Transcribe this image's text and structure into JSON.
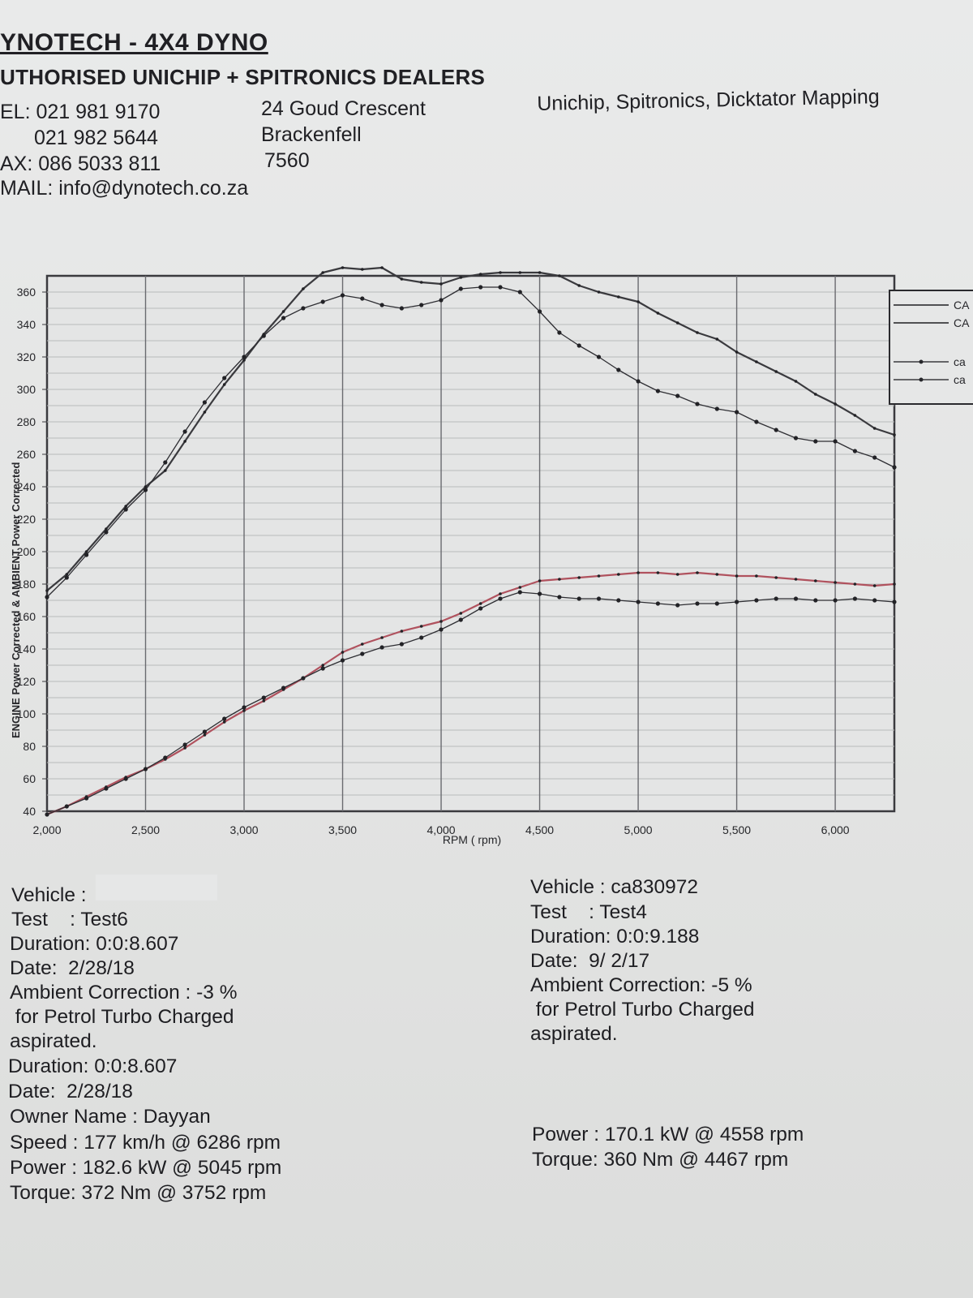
{
  "header": {
    "title": "YNOTECH - 4X4 DYNO",
    "subtitle": "UTHORISED UNICHIP + SPITRONICS DEALERS",
    "tel_line1": "EL: 021 981 9170",
    "tel_line2": "021 982 5644",
    "fax_line": "AX: 086 5033 811",
    "email_line": "MAIL: info@dynotech.co.za",
    "address_line1": "24 Goud Crescent",
    "address_line2": "Brackenfell",
    "address_line3": "7560",
    "services": "Unichip, Spitronics, Dicktator Mapping"
  },
  "chart_data": {
    "type": "line",
    "ylabel": "ENGINE Power Corrected & AMBIENT Power Corrected",
    "xlabel": "RPM ( rpm)",
    "xlim": [
      2000,
      6300
    ],
    "ylim": [
      40,
      370
    ],
    "x_ticks": [
      2000,
      2500,
      3000,
      3500,
      4000,
      4500,
      5000,
      5500,
      6000
    ],
    "x_tick_labels": [
      "2,000",
      "2,500",
      "3,000",
      "3,500",
      "4,000",
      "4,500",
      "5,000",
      "5,500",
      "6,000"
    ],
    "y_ticks": [
      40,
      60,
      80,
      100,
      120,
      140,
      160,
      180,
      200,
      220,
      240,
      260,
      280,
      300,
      320,
      340,
      360
    ],
    "grid": true,
    "legend_position": "right (partially cut off)",
    "legend_labels": [
      "CA",
      "CA",
      "ca",
      "ca"
    ],
    "colors": {
      "current": "#3a3a3e",
      "previous": "#2a2a2e",
      "current_power_tint": "#b0525e"
    },
    "series": [
      {
        "legend_label": "CA",
        "quantity": "torque",
        "markers": false,
        "x": [
          2000,
          2100,
          2200,
          2300,
          2400,
          2500,
          2600,
          2700,
          2800,
          2900,
          3000,
          3100,
          3200,
          3300,
          3400,
          3500,
          3600,
          3700,
          3800,
          3900,
          4000,
          4100,
          4200,
          4300,
          4400,
          4500,
          4600,
          4700,
          4800,
          4900,
          5000,
          5100,
          5200,
          5300,
          5400,
          5500,
          5600,
          5700,
          5800,
          5900,
          6000,
          6100,
          6200,
          6300
        ],
        "values": [
          176,
          186,
          200,
          214,
          228,
          240,
          250,
          268,
          286,
          303,
          318,
          334,
          348,
          362,
          372,
          375,
          374,
          375,
          368,
          366,
          365,
          369,
          371,
          372,
          372,
          372,
          370,
          364,
          360,
          357,
          354,
          347,
          341,
          335,
          331,
          323,
          317,
          311,
          305,
          297,
          291,
          284,
          276,
          272
        ]
      },
      {
        "legend_label": "CA",
        "quantity": "power",
        "markers": false,
        "x": [
          2000,
          2100,
          2200,
          2300,
          2400,
          2500,
          2600,
          2700,
          2800,
          2900,
          3000,
          3100,
          3200,
          3300,
          3400,
          3500,
          3600,
          3700,
          3800,
          3900,
          4000,
          4100,
          4200,
          4300,
          4400,
          4500,
          4600,
          4700,
          4800,
          4900,
          5000,
          5100,
          5200,
          5300,
          5400,
          5500,
          5600,
          5700,
          5800,
          5900,
          6000,
          6100,
          6200,
          6300
        ],
        "values": [
          38,
          43,
          49,
          55,
          61,
          66,
          72,
          79,
          87,
          95,
          102,
          108,
          115,
          122,
          130,
          138,
          143,
          147,
          151,
          154,
          157,
          162,
          168,
          174,
          178,
          182,
          183,
          184,
          185,
          186,
          187,
          187,
          186,
          187,
          186,
          185,
          185,
          184,
          183,
          182,
          181,
          180,
          179,
          180
        ]
      },
      {
        "legend_label": "ca",
        "quantity": "torque",
        "markers": true,
        "x": [
          2000,
          2100,
          2200,
          2300,
          2400,
          2500,
          2600,
          2700,
          2800,
          2900,
          3000,
          3100,
          3200,
          3300,
          3400,
          3500,
          3600,
          3700,
          3800,
          3900,
          4000,
          4100,
          4200,
          4300,
          4400,
          4500,
          4600,
          4700,
          4800,
          4900,
          5000,
          5100,
          5200,
          5300,
          5400,
          5500,
          5600,
          5700,
          5800,
          5900,
          6000,
          6100,
          6200,
          6300
        ],
        "values": [
          172,
          184,
          198,
          212,
          226,
          238,
          255,
          274,
          292,
          307,
          320,
          333,
          344,
          350,
          354,
          358,
          356,
          352,
          350,
          352,
          355,
          362,
          363,
          363,
          360,
          348,
          335,
          327,
          320,
          312,
          305,
          299,
          296,
          291,
          288,
          286,
          280,
          275,
          270,
          268,
          268,
          262,
          258,
          252
        ]
      },
      {
        "legend_label": "ca",
        "quantity": "power",
        "markers": true,
        "x": [
          2000,
          2100,
          2200,
          2300,
          2400,
          2500,
          2600,
          2700,
          2800,
          2900,
          3000,
          3100,
          3200,
          3300,
          3400,
          3500,
          3600,
          3700,
          3800,
          3900,
          4000,
          4100,
          4200,
          4300,
          4400,
          4500,
          4600,
          4700,
          4800,
          4900,
          5000,
          5100,
          5200,
          5300,
          5400,
          5500,
          5600,
          5700,
          5800,
          5900,
          6000,
          6100,
          6200,
          6300
        ],
        "values": [
          38,
          43,
          48,
          54,
          60,
          66,
          73,
          81,
          89,
          97,
          104,
          110,
          116,
          122,
          128,
          133,
          137,
          141,
          143,
          147,
          152,
          158,
          165,
          171,
          175,
          174,
          172,
          171,
          171,
          170,
          169,
          168,
          167,
          168,
          168,
          169,
          170,
          171,
          171,
          170,
          170,
          171,
          170,
          169
        ]
      }
    ]
  },
  "run_current": {
    "vehicle_label": "Vehicle :",
    "test": "Test    : Test6",
    "duration": "Duration: 0:0:8.607",
    "date": "Date:  2/28/18",
    "ambient": "Ambient Correction : -3 %",
    "for_line": " for Petrol Turbo Charged",
    "aspirated": "aspirated.",
    "duration2": "Duration: 0:0:8.607",
    "date2": "Date:  2/28/18",
    "owner": "Owner Name : Dayyan",
    "speed": "Speed : 177 km/h @ 6286 rpm",
    "power": "Power : 182.6 kW @ 5045 rpm",
    "torque": "Torque: 372 Nm @ 3752 rpm"
  },
  "run_previous": {
    "vehicle": "Vehicle : ca830972",
    "test": "Test    : Test4",
    "duration": "Duration: 0:0:9.188",
    "date": "Date:  9/ 2/17",
    "ambient": "Ambient Correction: -5 %",
    "for_line": " for Petrol Turbo Charged",
    "aspirated": "aspirated.",
    "power": "Power : 170.1 kW @ 4558 rpm",
    "torque": "Torque: 360 Nm @ 4467 rpm"
  }
}
